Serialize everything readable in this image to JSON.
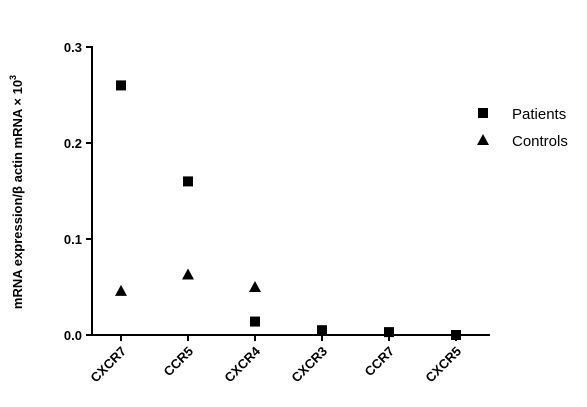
{
  "chart_data": {
    "type": "scatter",
    "y_label": "mRNA expression/β actin mRNA × 10",
    "y_label_sup": "3",
    "categories": [
      "CXCR7",
      "CCR5",
      "CXCR4",
      "CXCR3",
      "CCR7",
      "CXCR5"
    ],
    "series": [
      {
        "name": "Patients",
        "color": "#000000",
        "marker": "square",
        "values": [
          0.26,
          0.16,
          0.014,
          0.005,
          0.003,
          0.0
        ]
      },
      {
        "name": "Controls",
        "color": "#000000",
        "marker": "triangle",
        "values": [
          0.046,
          0.063,
          0.05,
          null,
          null,
          null
        ]
      }
    ],
    "ylim": [
      0,
      0.3
    ],
    "yticks": [
      {
        "value": 0,
        "label": "0.0"
      },
      0.1,
      0.2,
      0.3
    ],
    "legend": "right"
  }
}
